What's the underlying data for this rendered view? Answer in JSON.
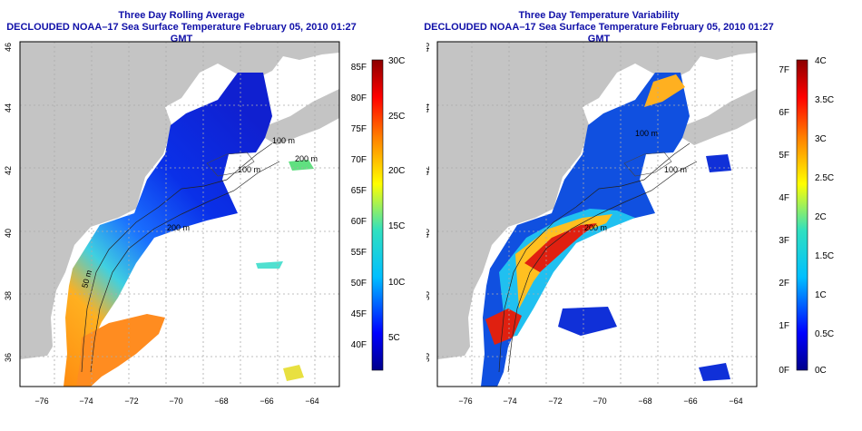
{
  "left_panel": {
    "title_line1": "Three Day Rolling Average",
    "title_line2": "DECLOUDED NOAA–17 Sea Surface Temperature February 05, 2010 01:27 GMT",
    "contour_labels": [
      "100 m",
      "100 m",
      "200 m",
      "200 m",
      "50 m"
    ],
    "colorbar": {
      "f_labels": [
        "85F",
        "80F",
        "75F",
        "70F",
        "65F",
        "60F",
        "55F",
        "50F",
        "45F",
        "40F"
      ],
      "c_labels": [
        "30C",
        "25C",
        "20C",
        "15C",
        "10C",
        "5C"
      ]
    }
  },
  "right_panel": {
    "title_line1": "Three Day Temperature Variability",
    "title_line2": "DECLOUDED NOAA–17 Sea Surface Temperature February 05, 2010 01:27 GMT",
    "contour_labels": [
      "100 m",
      "100 m",
      "200 m"
    ],
    "colorbar": {
      "f_labels": [
        "7F",
        "6F",
        "5F",
        "4F",
        "3F",
        "2F",
        "1F",
        "0F"
      ],
      "c_labels": [
        "4C",
        "3.5C",
        "3C",
        "2.5C",
        "2C",
        "1.5C",
        "1C",
        "0.5C",
        "0C"
      ]
    }
  },
  "axes": {
    "x_ticks": [
      "−76",
      "−74",
      "−72",
      "−70",
      "−68",
      "−66",
      "−64"
    ],
    "y_ticks": [
      "46",
      "44",
      "42",
      "40",
      "38",
      "36"
    ]
  },
  "colors": {
    "land": "#c4c4c4",
    "title": "#1010a8",
    "colorbar_stops": [
      "#00008b",
      "#0000ff",
      "#00bfff",
      "#30e0c0",
      "#ffff00",
      "#ff8000",
      "#ff0000",
      "#8b0000"
    ]
  }
}
